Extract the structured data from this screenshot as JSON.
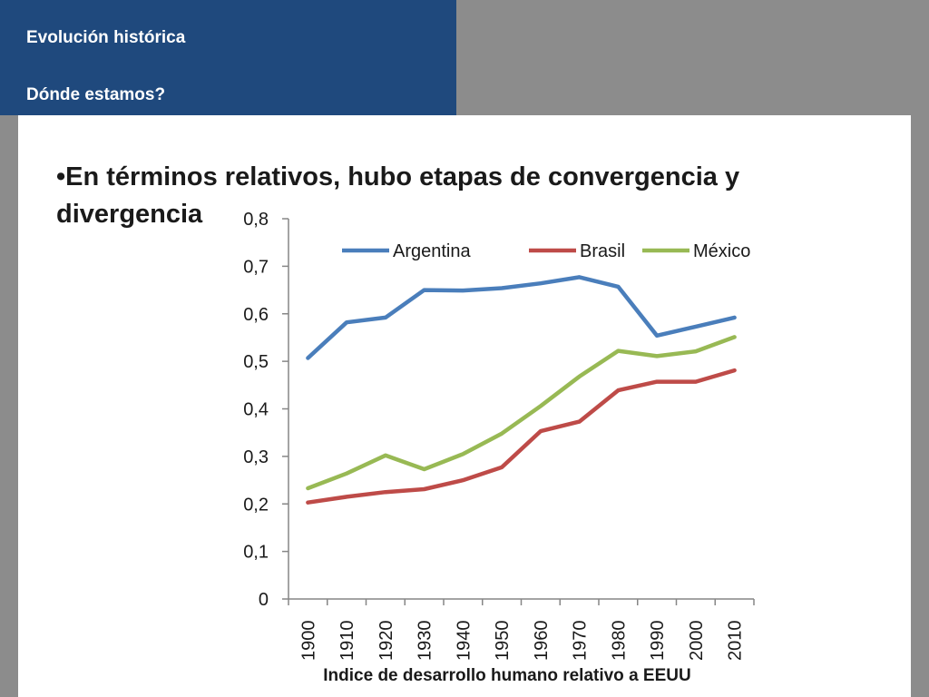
{
  "header": {
    "title": "Evolución histórica",
    "subtitle": "Dónde estamos?"
  },
  "slide": {
    "bullet": "•En términos relativos, hubo etapas de convergencia y divergencia"
  },
  "chart_data": {
    "type": "line",
    "title": "",
    "caption": "Indice de desarrollo humano relativo a EEUU",
    "xlabel": "",
    "ylabel": "",
    "categories": [
      "1900",
      "1910",
      "1920",
      "1930",
      "1940",
      "1950",
      "1960",
      "1970",
      "1980",
      "1990",
      "2000",
      "2010"
    ],
    "y_ticks": [
      "0",
      "0,1",
      "0,2",
      "0,3",
      "0,4",
      "0,5",
      "0,6",
      "0,7",
      "0,8"
    ],
    "ylim": [
      0,
      0.8
    ],
    "grid": false,
    "legend_position": "top",
    "series": [
      {
        "name": "Argentina",
        "color": "#4a7ebb",
        "values": [
          0.507,
          0.582,
          0.592,
          0.65,
          0.649,
          0.654,
          0.664,
          0.677,
          0.657,
          0.554,
          0.573,
          0.592
        ]
      },
      {
        "name": "Brasil",
        "color": "#be4b48",
        "values": [
          0.203,
          0.215,
          0.225,
          0.231,
          0.25,
          0.277,
          0.353,
          0.373,
          0.439,
          0.457,
          0.457,
          0.481
        ]
      },
      {
        "name": "México",
        "color": "#98b954",
        "values": [
          0.233,
          0.264,
          0.302,
          0.273,
          0.305,
          0.348,
          0.406,
          0.468,
          0.522,
          0.511,
          0.521,
          0.551
        ]
      }
    ]
  }
}
